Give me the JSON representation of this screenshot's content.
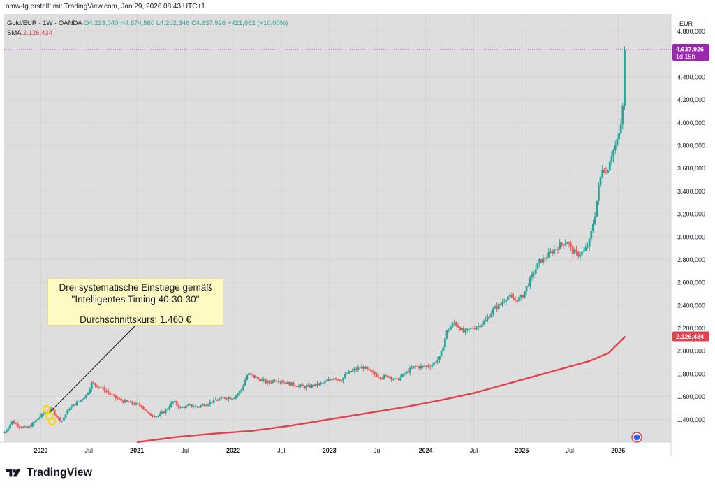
{
  "header": {
    "credit": "omw-tg erstellt mit TradingView.com, Jan 29, 2026 08:43 UTC+1"
  },
  "legend": {
    "symbol": "Gold/EUR · 1W · OANDA",
    "open": "O4.223,040",
    "high": "H4.674,560",
    "low": "L4.202,346",
    "close": "C4.637,926",
    "change": "+421,662 (+10,00%)",
    "sma_label": "SMA",
    "sma_value": "2.126,434"
  },
  "toolbar": {
    "currency": "EUR"
  },
  "annotation": {
    "line1": "Drei systematische Einstiege gemäß",
    "line2": "\"Intelligentes Timing 40-30-30\"",
    "line3": "Durchschnittskurs: 1.460 €"
  },
  "brand": {
    "name": "TradingView"
  },
  "colors": {
    "up": "#26a69a",
    "down": "#ef5350",
    "sma": "#e0434d",
    "price_label": "#9c27b0",
    "note_bg": "#fff9c4",
    "plot_bg": "#dedede"
  },
  "chart_data": {
    "type": "candlestick",
    "title": "Gold/EUR · 1W · OANDA",
    "ylabel": "EUR",
    "ylim": [
      1200,
      4950
    ],
    "x_range": [
      2019.62,
      2026.55
    ],
    "y_ticks": [
      "1.400,000",
      "1.600,000",
      "1.800,000",
      "2.000,000",
      "2.200,000",
      "2.400,000",
      "2.600,000",
      "2.800,000",
      "3.000,000",
      "3.200,000",
      "3.400,000",
      "3.600,000",
      "3.800,000",
      "4.000,000",
      "4.200,000",
      "4.400,000",
      "4.800,000"
    ],
    "y_tick_values": [
      1400,
      1600,
      1800,
      2000,
      2200,
      2400,
      2600,
      2800,
      3000,
      3200,
      3400,
      3600,
      3800,
      4000,
      4200,
      4400,
      4800
    ],
    "x_ticks": [
      "2020",
      "Jul",
      "2021",
      "Jul",
      "2022",
      "Jul",
      "2023",
      "Jul",
      "2024",
      "Jul",
      "2025",
      "Jul",
      "2026"
    ],
    "x_tick_values": [
      2020.0,
      2020.5,
      2021.0,
      2021.5,
      2022.0,
      2022.5,
      2023.0,
      2023.5,
      2024.0,
      2024.5,
      2025.0,
      2025.5,
      2026.0
    ],
    "price_path": [
      [
        2019.62,
        1280
      ],
      [
        2019.7,
        1380
      ],
      [
        2019.78,
        1340
      ],
      [
        2019.86,
        1320
      ],
      [
        2019.95,
        1390
      ],
      [
        2020.05,
        1470
      ],
      [
        2020.12,
        1480
      ],
      [
        2020.18,
        1410
      ],
      [
        2020.22,
        1390
      ],
      [
        2020.3,
        1500
      ],
      [
        2020.4,
        1560
      ],
      [
        2020.48,
        1620
      ],
      [
        2020.53,
        1720
      ],
      [
        2020.58,
        1700
      ],
      [
        2020.66,
        1660
      ],
      [
        2020.75,
        1600
      ],
      [
        2020.85,
        1560
      ],
      [
        2020.95,
        1540
      ],
      [
        2021.05,
        1520
      ],
      [
        2021.12,
        1440
      ],
      [
        2021.22,
        1430
      ],
      [
        2021.3,
        1480
      ],
      [
        2021.38,
        1560
      ],
      [
        2021.45,
        1500
      ],
      [
        2021.55,
        1520
      ],
      [
        2021.62,
        1510
      ],
      [
        2021.7,
        1530
      ],
      [
        2021.8,
        1560
      ],
      [
        2021.9,
        1590
      ],
      [
        2022.0,
        1590
      ],
      [
        2022.08,
        1650
      ],
      [
        2022.15,
        1800
      ],
      [
        2022.25,
        1760
      ],
      [
        2022.35,
        1720
      ],
      [
        2022.45,
        1750
      ],
      [
        2022.55,
        1720
      ],
      [
        2022.65,
        1700
      ],
      [
        2022.75,
        1680
      ],
      [
        2022.85,
        1700
      ],
      [
        2022.95,
        1720
      ],
      [
        2023.05,
        1770
      ],
      [
        2023.12,
        1740
      ],
      [
        2023.18,
        1800
      ],
      [
        2023.25,
        1830
      ],
      [
        2023.35,
        1860
      ],
      [
        2023.45,
        1800
      ],
      [
        2023.55,
        1770
      ],
      [
        2023.62,
        1780
      ],
      [
        2023.7,
        1740
      ],
      [
        2023.78,
        1800
      ],
      [
        2023.88,
        1860
      ],
      [
        2023.95,
        1860
      ],
      [
        2024.05,
        1870
      ],
      [
        2024.15,
        1940
      ],
      [
        2024.22,
        2170
      ],
      [
        2024.3,
        2250
      ],
      [
        2024.4,
        2160
      ],
      [
        2024.48,
        2200
      ],
      [
        2024.55,
        2220
      ],
      [
        2024.62,
        2260
      ],
      [
        2024.7,
        2360
      ],
      [
        2024.78,
        2410
      ],
      [
        2024.85,
        2480
      ],
      [
        2024.92,
        2440
      ],
      [
        2025.0,
        2470
      ],
      [
        2025.05,
        2560
      ],
      [
        2025.12,
        2680
      ],
      [
        2025.18,
        2780
      ],
      [
        2025.25,
        2820
      ],
      [
        2025.33,
        2880
      ],
      [
        2025.4,
        2930
      ],
      [
        2025.47,
        2960
      ],
      [
        2025.53,
        2870
      ],
      [
        2025.58,
        2840
      ],
      [
        2025.65,
        2870
      ],
      [
        2025.7,
        2950
      ],
      [
        2025.76,
        3200
      ],
      [
        2025.8,
        3440
      ],
      [
        2025.84,
        3620
      ],
      [
        2025.88,
        3550
      ],
      [
        2025.92,
        3700
      ],
      [
        2025.96,
        3770
      ],
      [
        2026.0,
        3850
      ],
      [
        2026.03,
        3990
      ],
      [
        2026.06,
        4220
      ],
      [
        2026.075,
        4637.926
      ]
    ],
    "sma_path": [
      [
        2021.0,
        1200
      ],
      [
        2021.4,
        1245
      ],
      [
        2021.8,
        1275
      ],
      [
        2022.2,
        1300
      ],
      [
        2022.6,
        1345
      ],
      [
        2023.0,
        1400
      ],
      [
        2023.4,
        1455
      ],
      [
        2023.8,
        1510
      ],
      [
        2024.2,
        1575
      ],
      [
        2024.5,
        1630
      ],
      [
        2024.8,
        1700
      ],
      [
        2025.1,
        1770
      ],
      [
        2025.4,
        1840
      ],
      [
        2025.7,
        1910
      ],
      [
        2025.9,
        1980
      ],
      [
        2026.075,
        2126.434
      ]
    ],
    "last_price": "4.637,926",
    "last_countdown": "1d 15h",
    "sma_last": "2.126,434",
    "entries": [
      {
        "x": 2020.06,
        "y": 1490
      },
      {
        "x": 2020.09,
        "y": 1430
      },
      {
        "x": 2020.12,
        "y": 1380
      }
    ],
    "avg_price": 1460
  }
}
